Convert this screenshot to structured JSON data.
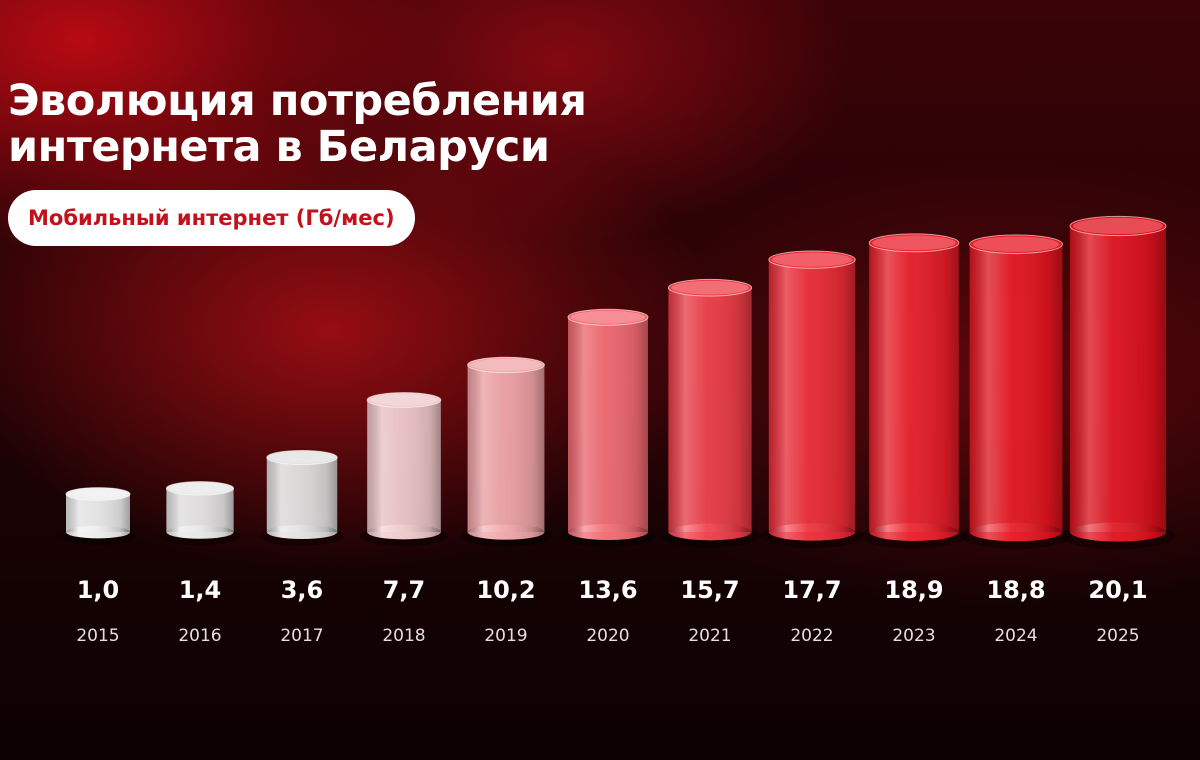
{
  "chart_data": {
    "type": "bar",
    "title": "Эволюция потребления интернета в Беларуси",
    "subtitle": "Мобильный интернет (Гб/мес)",
    "categories": [
      "2015",
      "2016",
      "2017",
      "2018",
      "2019",
      "2020",
      "2021",
      "2022",
      "2023",
      "2024",
      "2025"
    ],
    "values": [
      1.0,
      1.4,
      3.6,
      7.7,
      10.2,
      13.6,
      15.7,
      17.7,
      18.9,
      18.8,
      20.1
    ],
    "value_labels": [
      "1,0",
      "1,4",
      "3,6",
      "7,7",
      "10,2",
      "13,6",
      "15,7",
      "17,7",
      "18,9",
      "18,8",
      "20,1"
    ],
    "colors": [
      "#eeeeee",
      "#e8e8e8",
      "#e2e2e2",
      "#efc9cb",
      "#f1a5aa",
      "#f26a72",
      "#ef3c47",
      "#ee2a36",
      "#ea1c28",
      "#e6141f",
      "#e0101b"
    ]
  }
}
